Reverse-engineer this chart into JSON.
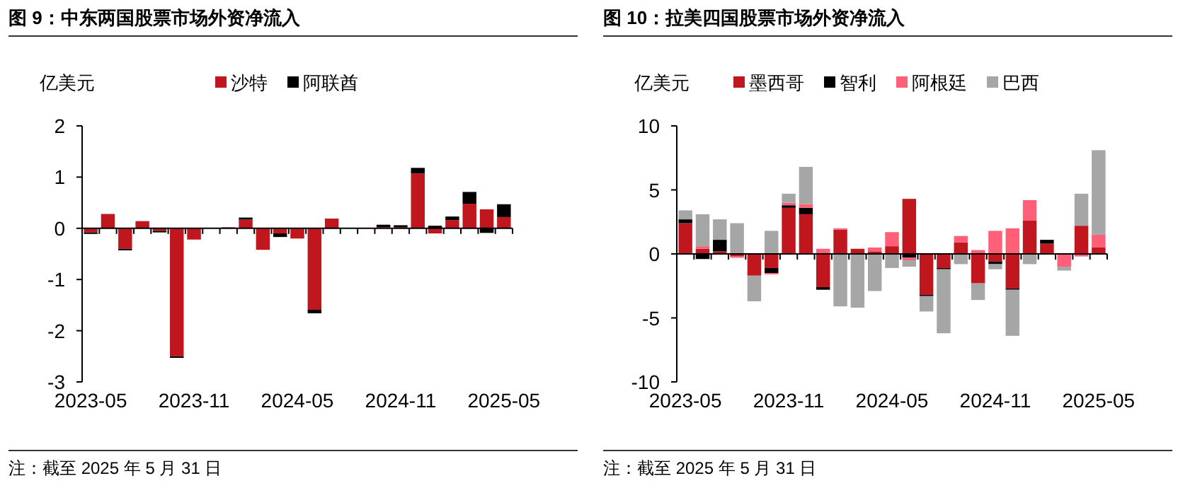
{
  "chart_data": [
    {
      "type": "bar",
      "title": "图 9：中东两国股票市场外资净流入",
      "ylabel": "亿美元",
      "stacked": true,
      "legend": "top",
      "categories": [
        "2023-05",
        null,
        null,
        null,
        null,
        null,
        "2023-11",
        null,
        null,
        null,
        null,
        null,
        "2024-05",
        null,
        null,
        null,
        null,
        null,
        "2024-11",
        null,
        null,
        null,
        null,
        null,
        "2025-05"
      ],
      "series": [
        {
          "name": "沙特",
          "color": "#c0161e",
          "values": [
            -0.08,
            0.28,
            -0.4,
            0.14,
            -0.05,
            -2.5,
            -0.22,
            0,
            0.02,
            0.17,
            -0.42,
            -0.1,
            -0.2,
            -1.59,
            0.19,
            null,
            null,
            0.02,
            0.02,
            1.07,
            -0.1,
            0.16,
            0.48,
            0.37,
            0.22
          ]
        },
        {
          "name": "阿联酋",
          "color": "#000000",
          "values": [
            -0.03,
            0,
            -0.03,
            null,
            -0.03,
            -0.03,
            0,
            0,
            0,
            0.04,
            0,
            -0.07,
            0,
            -0.07,
            0,
            0,
            0.01,
            0.05,
            0.04,
            0.11,
            0.05,
            0.07,
            0.23,
            -0.09,
            0.25
          ]
        }
      ],
      "ylim": [
        -3,
        2
      ],
      "yticks": [
        -3,
        -2,
        -1,
        0,
        1,
        2
      ],
      "annotations": [
        "注：截至 2025 年 5 月 31 日"
      ]
    },
    {
      "type": "bar",
      "title": "图 10：拉美四国股票市场外资净流入",
      "ylabel": "亿美元",
      "stacked": true,
      "legend": "top",
      "categories": [
        "2023-05",
        null,
        null,
        null,
        null,
        null,
        "2023-11",
        null,
        null,
        null,
        null,
        null,
        "2024-05",
        null,
        null,
        null,
        null,
        null,
        "2024-11",
        null,
        null,
        null,
        null,
        null,
        "2025-05"
      ],
      "series": [
        {
          "name": "墨西哥",
          "color": "#c0161e",
          "values": [
            2.4,
            0.4,
            0.2,
            -0.2,
            -1.7,
            -1.1,
            3.6,
            3.1,
            -2.6,
            1.9,
            0.4,
            0.2,
            0.6,
            4.3,
            -3.2,
            -1.1,
            0.9,
            -2.3,
            -0.6,
            -2.7,
            2.6,
            0.8,
            0,
            2.2,
            0.5
          ]
        },
        {
          "name": "智利",
          "color": "#000000",
          "values": [
            0.3,
            -0.4,
            0.9,
            0,
            0,
            -0.4,
            0.2,
            0.5,
            -0.2,
            0,
            0,
            0,
            0,
            -0.3,
            -0.1,
            -0.1,
            0,
            0,
            -0.2,
            -0.1,
            0,
            0.3,
            0,
            0,
            0
          ]
        },
        {
          "name": "阿根廷",
          "color": "#ff6078",
          "values": [
            0,
            0.2,
            0,
            -0.1,
            0,
            -0.1,
            0.2,
            0.3,
            0.4,
            0.1,
            0,
            0.3,
            1.1,
            -0.2,
            0,
            0,
            0.5,
            0.3,
            1.8,
            2.0,
            1.6,
            0,
            -1.0,
            -0.2,
            1.0
          ]
        },
        {
          "name": "巴西",
          "color": "#a6a6a6",
          "values": [
            0.7,
            2.5,
            1.6,
            2.4,
            -2.0,
            1.8,
            0.7,
            2.9,
            0,
            -4.1,
            -4.2,
            -2.9,
            -1.1,
            -0.5,
            -1.2,
            -5.0,
            -0.8,
            -1.3,
            -0.4,
            -3.6,
            -0.8,
            0,
            -0.3,
            2.5,
            6.6
          ]
        }
      ],
      "ylim": [
        -10,
        10
      ],
      "yticks": [
        -10,
        -5,
        0,
        5,
        10
      ],
      "annotations": [
        "注：截至 2025 年 5 月 31 日"
      ]
    }
  ]
}
